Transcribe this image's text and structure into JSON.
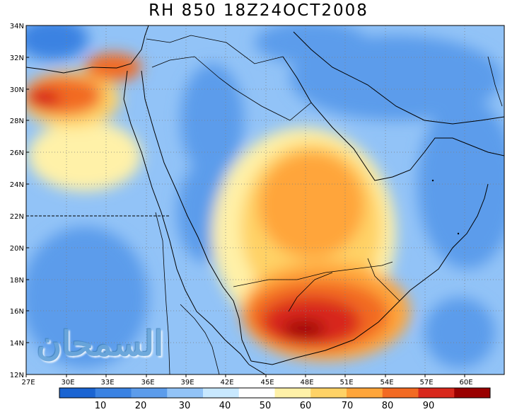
{
  "title": "RH 850 18Z24OCT2008",
  "watermark": "السمحان",
  "map": {
    "lon_range": [
      27,
      63
    ],
    "lat_range": [
      12,
      34
    ],
    "x_ticks": [
      "27E",
      "30E",
      "33E",
      "36E",
      "39E",
      "42E",
      "45E",
      "48E",
      "51E",
      "54E",
      "57E",
      "60E"
    ],
    "y_ticks": [
      "12N",
      "14N",
      "16N",
      "18N",
      "20N",
      "22N",
      "24N",
      "26N",
      "28N",
      "30N",
      "32N",
      "34N"
    ]
  },
  "colorbar": {
    "colors": [
      "#1a64d2",
      "#3a82e2",
      "#5c9ceb",
      "#92c3f7",
      "#c8e8ff",
      "#ffffff",
      "#fff1a8",
      "#ffd266",
      "#ffa53a",
      "#f26a22",
      "#d8281c",
      "#990000"
    ],
    "labels": [
      "10",
      "20",
      "30",
      "40",
      "50",
      "60",
      "70",
      "80",
      "90"
    ]
  },
  "colors": {
    "dry_strong": "#3a82e2",
    "dry": "#5c9ceb",
    "moist": "#ffa53a",
    "very_moist": "#d8281c"
  }
}
